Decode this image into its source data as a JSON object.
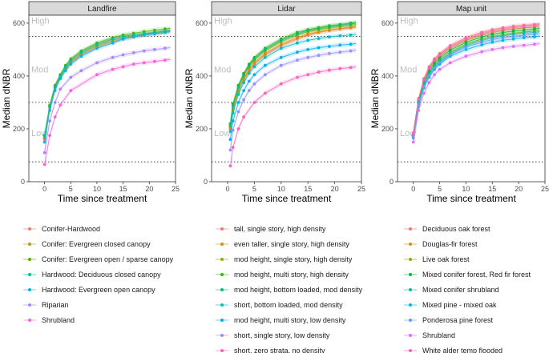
{
  "chart_data": [
    {
      "type": "scatter",
      "panel": "Landfire",
      "xlabel": "Time since treatment",
      "ylabel": "Median dNBR",
      "xlim": [
        -3,
        25
      ],
      "ylim": [
        0,
        630
      ],
      "xticks": [
        0,
        5,
        10,
        15,
        20,
        25
      ],
      "yticks": [
        0,
        200,
        400,
        600
      ],
      "severity_bands": [
        {
          "label": "High",
          "threshold": 550
        },
        {
          "label": "Mod",
          "threshold": 300
        },
        {
          "label": "Low",
          "threshold": 75
        }
      ],
      "series": [
        {
          "name": "Conifer-Hardwood",
          "color": "#F8766D",
          "x": [
            0,
            1,
            2,
            3,
            4,
            5,
            7,
            10,
            13,
            15,
            17,
            19,
            21,
            23
          ],
          "y": [
            160,
            280,
            355,
            395,
            425,
            450,
            480,
            510,
            530,
            540,
            548,
            555,
            560,
            565
          ]
        },
        {
          "name": "Conifer: Evergreen closed canopy",
          "color": "#C49A00",
          "x": [
            0,
            1,
            2,
            3,
            4,
            5,
            7,
            10,
            13,
            15,
            17,
            19,
            21,
            23
          ],
          "y": [
            165,
            285,
            360,
            400,
            430,
            455,
            485,
            515,
            535,
            545,
            552,
            558,
            563,
            568
          ]
        },
        {
          "name": "Conifer: Evergreen open / sparse canopy",
          "color": "#53B400",
          "x": [
            0,
            1,
            2,
            3,
            4,
            5,
            7,
            10,
            13,
            15,
            17,
            19,
            21,
            23
          ],
          "y": [
            170,
            290,
            365,
            405,
            440,
            465,
            495,
            525,
            545,
            555,
            562,
            568,
            573,
            578
          ]
        },
        {
          "name": "Hardwood: Deciduous closed canopy",
          "color": "#00C094",
          "x": [
            0,
            1,
            2,
            3,
            4,
            5,
            7,
            10,
            13,
            15,
            17,
            19,
            21,
            23
          ],
          "y": [
            175,
            285,
            360,
            400,
            435,
            460,
            490,
            520,
            540,
            550,
            555,
            560,
            565,
            570
          ]
        },
        {
          "name": "Hardwood: Evergreen open canopy",
          "color": "#00B6EB",
          "x": [
            0,
            1,
            2,
            3,
            4,
            5,
            7,
            10,
            13,
            15,
            17,
            19,
            21,
            23
          ],
          "y": [
            150,
            270,
            345,
            390,
            420,
            445,
            475,
            505,
            525,
            540,
            548,
            555,
            560,
            565
          ]
        },
        {
          "name": "Riparian",
          "color": "#A58AFF",
          "x": [
            0,
            1,
            2,
            3,
            5,
            7,
            10,
            13,
            15,
            17,
            19,
            21,
            23
          ],
          "y": [
            110,
            230,
            300,
            350,
            395,
            420,
            450,
            470,
            480,
            488,
            495,
            500,
            505
          ]
        },
        {
          "name": "Shrubland",
          "color": "#FB61D7",
          "x": [
            0,
            1,
            2,
            3,
            5,
            10,
            13,
            15,
            17,
            19,
            21,
            23
          ],
          "y": [
            65,
            175,
            245,
            290,
            345,
            405,
            425,
            435,
            445,
            450,
            455,
            460
          ]
        }
      ]
    },
    {
      "type": "scatter",
      "panel": "Lidar",
      "xlabel": "Time since treatment",
      "ylabel": "Median dNBR",
      "xlim": [
        -3,
        25
      ],
      "ylim": [
        0,
        630
      ],
      "xticks": [
        0,
        5,
        10,
        15,
        20,
        25
      ],
      "yticks": [
        0,
        200,
        400,
        600
      ],
      "severity_bands": [
        {
          "label": "High",
          "threshold": 550
        },
        {
          "label": "Mod",
          "threshold": 300
        },
        {
          "label": "Low",
          "threshold": 75
        }
      ],
      "series": [
        {
          "name": "tall, single story, high density",
          "color": "#F8766D",
          "x": [
            0.5,
            1,
            2,
            3,
            4,
            5,
            7,
            10,
            13,
            15,
            17,
            19,
            21,
            23
          ],
          "y": [
            200,
            270,
            340,
            385,
            420,
            445,
            480,
            515,
            540,
            555,
            565,
            572,
            578,
            582
          ]
        },
        {
          "name": "even taller, single story, high density",
          "color": "#D89000",
          "x": [
            0.5,
            1,
            2,
            3,
            4,
            5,
            7,
            10,
            13,
            15,
            17,
            19,
            21,
            23
          ],
          "y": [
            205,
            275,
            345,
            390,
            425,
            450,
            485,
            520,
            545,
            558,
            567,
            574,
            580,
            585
          ]
        },
        {
          "name": "mod height, single story, high density",
          "color": "#A3A500",
          "x": [
            0.5,
            1,
            2,
            3,
            4,
            5,
            7,
            10,
            13,
            15,
            17,
            19,
            21,
            23
          ],
          "y": [
            210,
            285,
            355,
            400,
            435,
            460,
            495,
            530,
            555,
            568,
            576,
            582,
            588,
            592
          ]
        },
        {
          "name": "mod height, multi story, high density",
          "color": "#39B600",
          "x": [
            0.5,
            1,
            2,
            3,
            4,
            5,
            7,
            10,
            13,
            15,
            17,
            19,
            21,
            23
          ],
          "y": [
            220,
            295,
            365,
            410,
            445,
            470,
            505,
            540,
            565,
            575,
            583,
            590,
            595,
            600
          ]
        },
        {
          "name": "mod height, bottom loaded, mod density",
          "color": "#00BF7D",
          "x": [
            0.5,
            1,
            2,
            3,
            4,
            5,
            7,
            10,
            13,
            15,
            17,
            19,
            21,
            23
          ],
          "y": [
            215,
            290,
            360,
            405,
            440,
            465,
            500,
            535,
            560,
            572,
            580,
            587,
            592,
            597
          ]
        },
        {
          "name": "short, bottom loaded, mod density",
          "color": "#00BFC4",
          "x": [
            0.5,
            1,
            2,
            3,
            4,
            5,
            7,
            10,
            13,
            15,
            17,
            19,
            21,
            23
          ],
          "y": [
            190,
            260,
            330,
            375,
            410,
            435,
            470,
            505,
            525,
            535,
            542,
            548,
            552,
            555
          ]
        },
        {
          "name": "mod height, multi story, low density",
          "color": "#00B0F6",
          "x": [
            0.5,
            1,
            2,
            3,
            4,
            5,
            7,
            10,
            13,
            15,
            17,
            19,
            21,
            23
          ],
          "y": [
            160,
            230,
            300,
            345,
            380,
            405,
            440,
            470,
            490,
            500,
            507,
            512,
            517,
            520
          ]
        },
        {
          "name": "short, single story, low density",
          "color": "#9590FF",
          "x": [
            0.5,
            1,
            2,
            3,
            4,
            5,
            7,
            10,
            13,
            15,
            17,
            19,
            21,
            23
          ],
          "y": [
            120,
            195,
            265,
            310,
            345,
            370,
            405,
            440,
            460,
            470,
            478,
            485,
            490,
            495
          ]
        },
        {
          "name": "short, zero strata, no density",
          "color": "#FF62BC",
          "x": [
            0.5,
            1,
            2,
            3,
            5,
            7,
            10,
            13,
            15,
            17,
            19,
            21,
            23
          ],
          "y": [
            60,
            130,
            200,
            245,
            300,
            335,
            370,
            395,
            405,
            415,
            422,
            428,
            432
          ]
        }
      ]
    },
    {
      "type": "scatter",
      "panel": "Map unit",
      "xlabel": "Time since treatment",
      "ylabel": "Median dNBR",
      "xlim": [
        -3,
        25
      ],
      "ylim": [
        0,
        630
      ],
      "xticks": [
        0,
        5,
        10,
        15,
        20,
        25
      ],
      "yticks": [
        0,
        200,
        400,
        600
      ],
      "severity_bands": [
        {
          "label": "High",
          "threshold": 550
        },
        {
          "label": "Mod",
          "threshold": 300
        },
        {
          "label": "Low",
          "threshold": 75
        }
      ],
      "series": [
        {
          "name": "Deciduous oak forest",
          "color": "#F8766D",
          "x": [
            0,
            1,
            2,
            3,
            4,
            5,
            7,
            10,
            13,
            15,
            17,
            19,
            21,
            23
          ],
          "y": [
            185,
            315,
            390,
            435,
            465,
            485,
            515,
            545,
            565,
            575,
            582,
            588,
            592,
            595
          ]
        },
        {
          "name": "Douglas-fir forest",
          "color": "#D39200",
          "x": [
            0,
            1,
            2,
            3,
            4,
            5,
            7,
            10,
            13,
            15,
            17,
            19,
            21,
            23
          ],
          "y": [
            180,
            310,
            380,
            425,
            455,
            475,
            505,
            535,
            555,
            565,
            572,
            578,
            582,
            585
          ]
        },
        {
          "name": "Live oak forest",
          "color": "#93AA00",
          "x": [
            0,
            1,
            2,
            3,
            4,
            5,
            7,
            10,
            13,
            15,
            17,
            19,
            21,
            23
          ],
          "y": [
            175,
            300,
            370,
            410,
            440,
            460,
            490,
            520,
            540,
            550,
            556,
            562,
            566,
            570
          ]
        },
        {
          "name": "Mixed conifer forest, Red fir forest",
          "color": "#00BA38",
          "x": [
            0,
            1,
            2,
            3,
            4,
            5,
            7,
            10,
            13,
            15,
            17,
            19,
            21,
            23
          ],
          "y": [
            178,
            305,
            375,
            418,
            448,
            468,
            498,
            528,
            548,
            558,
            565,
            570,
            574,
            578
          ]
        },
        {
          "name": "Mixed conifer shrubland",
          "color": "#00C19F",
          "x": [
            0,
            1,
            2,
            3,
            4,
            5,
            7,
            10,
            13,
            15,
            17,
            19,
            21,
            23
          ],
          "y": [
            172,
            295,
            365,
            405,
            435,
            455,
            485,
            515,
            535,
            545,
            552,
            558,
            562,
            565
          ]
        },
        {
          "name": "Mixed pine - mixed oak",
          "color": "#00B9E3",
          "x": [
            0,
            1,
            2,
            3,
            4,
            5,
            7,
            10,
            13,
            15,
            17,
            19,
            21,
            23
          ],
          "y": [
            165,
            285,
            355,
            395,
            425,
            445,
            475,
            500,
            518,
            528,
            535,
            540,
            545,
            548
          ]
        },
        {
          "name": "Ponderosa pine forest",
          "color": "#619CFF",
          "x": [
            0,
            1,
            2,
            3,
            4,
            5,
            7,
            10,
            13,
            15,
            17,
            19,
            21,
            23
          ],
          "y": [
            168,
            290,
            360,
            400,
            430,
            450,
            480,
            510,
            528,
            538,
            545,
            550,
            554,
            558
          ]
        },
        {
          "name": "Shrubland",
          "color": "#DB72FB",
          "x": [
            0,
            1,
            2,
            3,
            4,
            5,
            7,
            10,
            13,
            15,
            17,
            19,
            21,
            23
          ],
          "y": [
            150,
            270,
            335,
            375,
            405,
            425,
            450,
            475,
            492,
            500,
            507,
            512,
            516,
            520
          ]
        },
        {
          "name": "White alder temp flooded",
          "color": "#FF61C3",
          "x": [
            0,
            1,
            2,
            3,
            4,
            5,
            7,
            10,
            13,
            15,
            17,
            19,
            21,
            23
          ],
          "y": [
            182,
            312,
            385,
            430,
            460,
            480,
            510,
            540,
            560,
            570,
            577,
            583,
            588,
            591
          ]
        }
      ]
    }
  ]
}
